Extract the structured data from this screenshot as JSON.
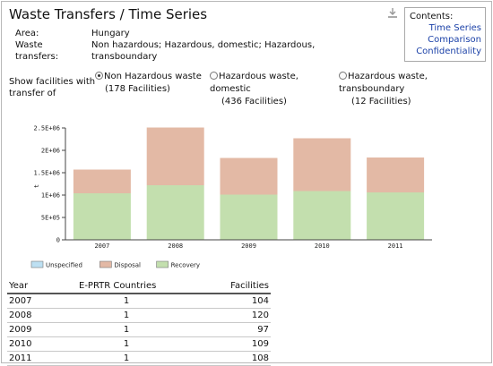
{
  "page": {
    "title": "Waste Transfers / Time Series"
  },
  "contents": {
    "title": "Contents:",
    "links": [
      "Time Series",
      "Comparison",
      "Confidentiality"
    ]
  },
  "meta": {
    "area_label": "Area:",
    "area_value": "Hungary",
    "waste_label_line1": "Waste",
    "waste_label_line2": "transfers:",
    "waste_value_line1": "Non hazardous; Hazardous, domestic; Hazardous,",
    "waste_value_line2": "transboundary"
  },
  "filter": {
    "label_line1": "Show facilities with",
    "label_line2": "transfer of",
    "options": [
      {
        "line1": "Non Hazardous waste",
        "line2": "(178 Facilities)",
        "checked": true
      },
      {
        "line1": "Hazardous waste,",
        "line2": "domestic",
        "line3": "(436 Facilities)",
        "checked": false
      },
      {
        "line1": "Hazardous waste,",
        "line2": "transboundary",
        "line3": "(12 Facilities)",
        "checked": false
      }
    ]
  },
  "chart_data": {
    "type": "bar",
    "stacked": true,
    "categories": [
      "2007",
      "2008",
      "2009",
      "2010",
      "2011"
    ],
    "ylabel": "t",
    "ylim": [
      0,
      2500000
    ],
    "yticks": [
      0,
      500000,
      1000000,
      1500000,
      2000000,
      2500000
    ],
    "ytick_labels": [
      "0",
      "5E+05",
      "1E+06",
      "1.5E+06",
      "2E+06",
      "2.5E+06"
    ],
    "series": [
      {
        "name": "Unspecified",
        "color": "#bde0f2",
        "values": [
          0,
          0,
          0,
          0,
          0
        ]
      },
      {
        "name": "Disposal",
        "color": "#e3b9a5",
        "values": [
          530000,
          1290000,
          820000,
          1180000,
          780000
        ]
      },
      {
        "name": "Recovery",
        "color": "#c3dfae",
        "values": [
          1040000,
          1220000,
          1010000,
          1090000,
          1060000
        ]
      }
    ],
    "legend_position": "bottom-left",
    "grid": false
  },
  "table": {
    "headers": [
      "Year",
      "E-PRTR Countries",
      "Facilities"
    ],
    "rows": [
      [
        "2007",
        "1",
        "104"
      ],
      [
        "2008",
        "1",
        "120"
      ],
      [
        "2009",
        "1",
        "97"
      ],
      [
        "2010",
        "1",
        "109"
      ],
      [
        "2011",
        "1",
        "108"
      ]
    ]
  }
}
